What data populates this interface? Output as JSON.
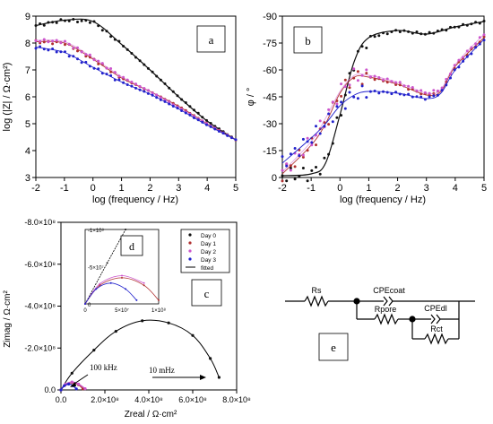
{
  "chart_data": [
    {
      "panel": "a",
      "type": "scatter",
      "ylabel": "log (|Z| / Ω·cm²)",
      "xlabel": "log (frequency / Hz)",
      "xlim": [
        -2,
        5
      ],
      "ylim": [
        3,
        9
      ],
      "xticks": [
        "-2",
        "-1",
        "0",
        "1",
        "2",
        "3",
        "4",
        "5"
      ],
      "yticks": [
        "3",
        "4",
        "5",
        "6",
        "7",
        "8",
        "9"
      ],
      "series": [
        {
          "color": "#111111",
          "x": [
            -2,
            -1,
            0,
            1,
            2,
            3,
            4,
            5
          ],
          "y": [
            8.65,
            8.85,
            8.8,
            7.95,
            7.0,
            6.0,
            5.1,
            4.4
          ]
        },
        {
          "color": "#b03030",
          "x": [
            -2,
            -1,
            0,
            1,
            2,
            3,
            4,
            5
          ],
          "y": [
            8.05,
            8.0,
            7.4,
            6.7,
            6.2,
            5.65,
            5.0,
            4.4
          ]
        },
        {
          "color": "#cc55cc",
          "x": [
            -2,
            -1,
            0,
            1,
            2,
            3,
            4,
            5
          ],
          "y": [
            8.1,
            8.05,
            7.45,
            6.75,
            6.2,
            5.6,
            5.0,
            4.4
          ]
        },
        {
          "color": "#2222cc",
          "x": [
            -2,
            -1,
            0,
            1,
            2,
            3,
            4,
            5
          ],
          "y": [
            7.85,
            7.65,
            7.1,
            6.55,
            6.1,
            5.55,
            4.95,
            4.4
          ]
        }
      ]
    },
    {
      "panel": "b",
      "type": "scatter",
      "ylabel": "φ / °",
      "xlabel": "log (frequency / Hz)",
      "xlim": [
        -2,
        5
      ],
      "ylim": [
        0,
        -90
      ],
      "xticks": [
        "-2",
        "-1",
        "0",
        "1",
        "2",
        "3",
        "4",
        "5"
      ],
      "yticks": [
        "0",
        "-15",
        "-30",
        "-45",
        "-60",
        "-75",
        "-90"
      ],
      "series": [
        {
          "color": "#111111",
          "x": [
            -2,
            -1,
            -0.5,
            0,
            0.5,
            1,
            2,
            3,
            4,
            5
          ],
          "y": [
            -1,
            -2,
            -8,
            -35,
            -65,
            -78,
            -82,
            -80,
            -84,
            -87
          ]
        },
        {
          "color": "#b03030",
          "x": [
            -2,
            -1,
            -0.5,
            0,
            0.5,
            1,
            2,
            3,
            3.5,
            4,
            5
          ],
          "y": [
            -2,
            -18,
            -30,
            -47,
            -56,
            -56,
            -52,
            -46,
            -48,
            -62,
            -78
          ]
        },
        {
          "color": "#cc55cc",
          "x": [
            -2,
            -1,
            -0.5,
            0,
            0.5,
            1,
            2,
            3,
            3.5,
            4,
            5
          ],
          "y": [
            -3,
            -20,
            -33,
            -48,
            -57,
            -57,
            -53,
            -47,
            -49,
            -63,
            -80
          ]
        },
        {
          "color": "#2222cc",
          "x": [
            -2,
            -1,
            -0.5,
            0,
            0.5,
            1,
            2,
            3,
            3.5,
            4,
            5
          ],
          "y": [
            -8,
            -22,
            -30,
            -40,
            -46,
            -48,
            -47,
            -44,
            -47,
            -60,
            -77
          ]
        }
      ]
    },
    {
      "panel": "c",
      "type": "scatter",
      "ylabel": "Zimag / Ω·cm²",
      "xlabel": "Zreal / Ω·cm²",
      "xlim": [
        0,
        800000000.0
      ],
      "ylim": [
        0,
        -800000000.0
      ],
      "xticks": [
        "0.0",
        "2.0×10⁸",
        "4.0×10⁸",
        "6.0×10⁸",
        "8.0×10⁸"
      ],
      "yticks": [
        "0.0",
        "-2.0×10⁸",
        "-4.0×10⁸",
        "-6.0×10⁸",
        "-8.0×10⁸"
      ],
      "annotations": [
        "100 kHz",
        "10 mHz"
      ],
      "series": [
        {
          "name": "Day 0",
          "color": "#111111",
          "x": [
            0.0,
            50000000.0,
            150000000.0,
            250000000.0,
            370000000.0,
            490000000.0,
            600000000.0,
            680000000.0,
            720000000.0
          ],
          "y": [
            0.0,
            -80000000.0,
            -190000000.0,
            -280000000.0,
            -330000000.0,
            -320000000.0,
            -260000000.0,
            -150000000.0,
            -60000000.0
          ]
        },
        {
          "name": "Day 1",
          "color": "#b03030",
          "x": [
            0.0,
            20000000.0,
            50000000.0,
            80000000.0,
            100000000.0
          ],
          "y": [
            0.0,
            -25000000.0,
            -35000000.0,
            -25000000.0,
            -5000000.0
          ]
        },
        {
          "name": "Day 2",
          "color": "#cc55cc",
          "x": [
            0.0,
            20000000.0,
            50000000.0,
            80000000.0,
            110000000.0
          ],
          "y": [
            0.0,
            -27000000.0,
            -38000000.0,
            -28000000.0,
            -6000000.0
          ]
        },
        {
          "name": "Day 3",
          "color": "#2222cc",
          "x": [
            0.0,
            15000000.0,
            35000000.0,
            55000000.0,
            70000000.0
          ],
          "y": [
            0.0,
            -20000000.0,
            -28000000.0,
            -20000000.0,
            -5000000.0
          ]
        }
      ]
    },
    {
      "panel": "d",
      "type": "scatter",
      "xlim": [
        0,
        100000000.0
      ],
      "ylim": [
        0,
        -100000000.0
      ],
      "xticks": [
        "0",
        "5×10⁷",
        "1×10⁸"
      ],
      "yticks": [
        "0",
        "-5×10⁷",
        "-1×10⁸"
      ]
    }
  ],
  "legend": {
    "items": [
      "Day 0",
      "Day 1",
      "Day 2",
      "Day 3",
      "fitted"
    ]
  },
  "panel_labels": {
    "a": "a",
    "b": "b",
    "c": "c",
    "d": "d",
    "e": "e"
  },
  "circuit": {
    "rs": "Rs",
    "cpe_coat": "CPEcoat",
    "rpore": "Rpore",
    "cpe_dl": "CPEdl",
    "rct": "Rct"
  },
  "axis_text": {
    "a_ylabel": "log (|Z| / Ω·cm²)",
    "a_xlabel": "log (frequency / Hz)",
    "b_ylabel": "φ / °",
    "b_xlabel": "log (frequency / Hz)",
    "c_ylabel": "Zimag / Ω·cm²",
    "c_xlabel": "Zreal / Ω·cm²"
  }
}
